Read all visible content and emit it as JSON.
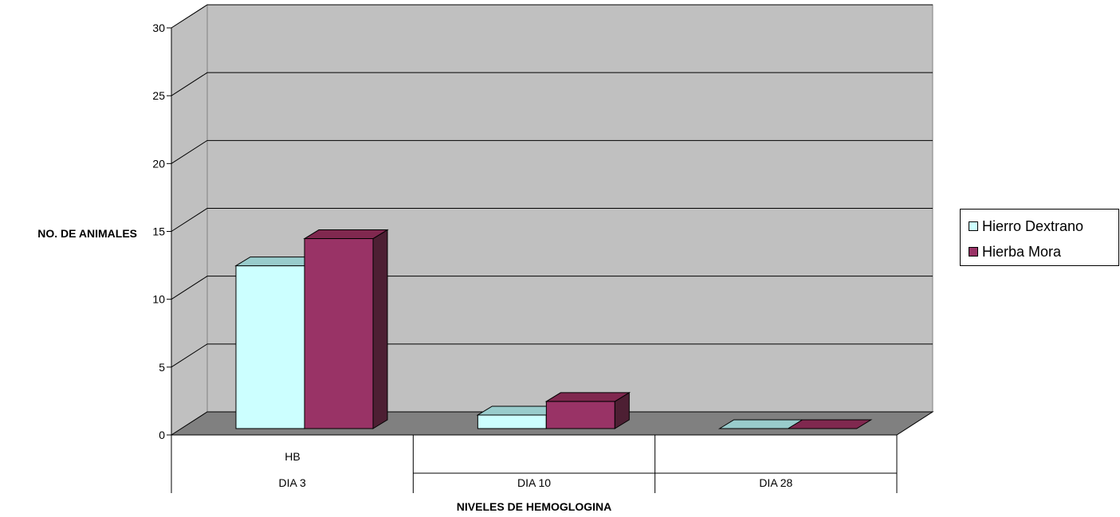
{
  "chart_data": {
    "type": "bar",
    "title": "",
    "xlabel": "NIVELES DE HEMOGLOGINA",
    "ylabel": "NO. DE ANIMALES",
    "group_label": "HB",
    "categories": [
      "DIA 3",
      "DIA 10",
      "DIA 28"
    ],
    "series": [
      {
        "name": "Hierro Dextrano",
        "values": [
          12,
          1,
          0
        ]
      },
      {
        "name": "Hierba Mora",
        "values": [
          14,
          2,
          0
        ]
      }
    ],
    "ylim": [
      0,
      30
    ],
    "yticks": [
      0,
      5,
      10,
      15,
      20,
      25,
      30
    ],
    "grid": true,
    "legend_position": "right",
    "colors": {
      "series": [
        "#ccffff",
        "#993366"
      ],
      "series_top": [
        "#99cccc",
        "#80284f"
      ],
      "series_side": [
        "#669999",
        "#4d1f33"
      ],
      "wall": "#c0c0c0",
      "floor": "#808080"
    }
  }
}
